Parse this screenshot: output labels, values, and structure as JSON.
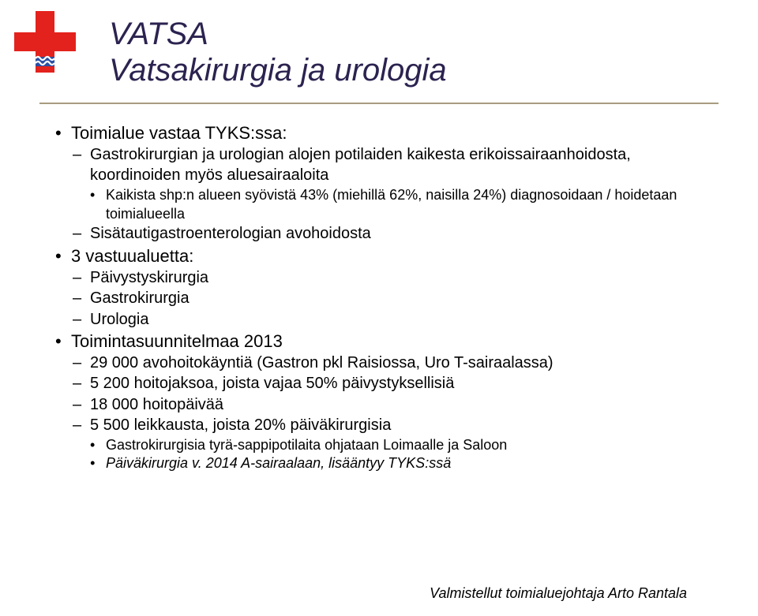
{
  "colors": {
    "title": "#2c2350",
    "body": "#000000",
    "divider": "#a89c80",
    "logo_red": "#e3221d",
    "logo_blue": "#2a4fa4",
    "logo_white": "#ffffff"
  },
  "fontsizes": {
    "title": 40,
    "b1": 22,
    "b2": 20,
    "b3": 18,
    "b4": 16,
    "footer": 18
  },
  "title": {
    "line1": "VATSA",
    "line2": "Vatsakirurgia ja urologia"
  },
  "content": [
    {
      "level": 1,
      "text": "Toimialue vastaa TYKS:ssa:"
    },
    {
      "level": 2,
      "text": "Gastrokirurgian ja urologian alojen potilaiden kaikesta erikoissairaanhoidosta, koordinoiden myös aluesairaaloita"
    },
    {
      "level": 3,
      "text": "Kaikista shp:n alueen syövistä 43% (miehillä 62%, naisilla 24%) diagnosoidaan / hoidetaan toimialueella"
    },
    {
      "level": 2,
      "text": "Sisätautigastroenterologian avohoidosta"
    },
    {
      "level": 1,
      "text": "3 vastuualuetta:"
    },
    {
      "level": 2,
      "text": "Päivystyskirurgia"
    },
    {
      "level": 2,
      "text": "Gastrokirurgia"
    },
    {
      "level": 2,
      "text": "Urologia"
    },
    {
      "level": 1,
      "text": "Toimintasuunnitelmaa 2013"
    },
    {
      "level": 2,
      "text": "29 000 avohoitokäyntiä (Gastron pkl Raisiossa, Uro T-sairaalassa)"
    },
    {
      "level": 2,
      "text": "5 200 hoitojaksoa, joista vajaa 50% päivystyksellisiä"
    },
    {
      "level": 2,
      "text": "18 000 hoitopäivää"
    },
    {
      "level": 2,
      "text": "5 500 leikkausta, joista 20% päiväkirurgisia"
    },
    {
      "level": 3,
      "text": "Gastrokirurgisia tyrä-sappipotilaita ohjataan Loimaalle ja Saloon"
    },
    {
      "level": 3,
      "italic": true,
      "text": "Päiväkirurgia v. 2014 A-sairaalaan, lisääntyy TYKS:ssä"
    }
  ],
  "footer": "Valmistellut toimialuejohtaja Arto Rantala"
}
